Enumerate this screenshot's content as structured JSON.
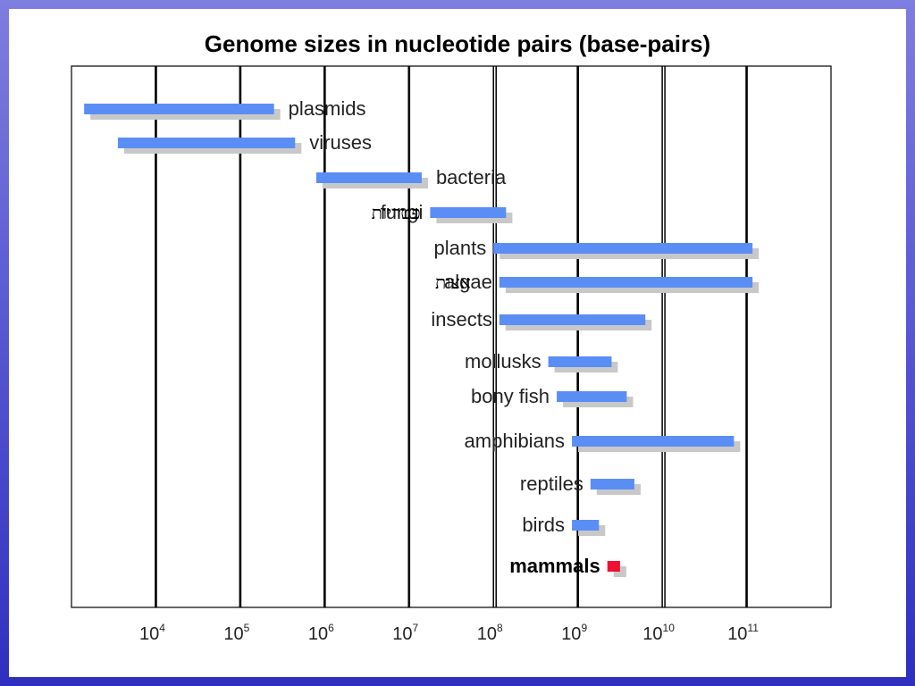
{
  "colors": {
    "bar": "#5b8ef5",
    "bar_highlight": "#ee1133",
    "shadow": "#c8c8c8",
    "gridline": "#000000",
    "frame_background": "#6a6ad8"
  },
  "annotations": [
    {
      "text": "פטריות",
      "row": "fungi"
    },
    {
      "text": "אצות",
      "row": "algae"
    }
  ],
  "chart_data": {
    "type": "bar",
    "orientation": "horizontal-range",
    "title": "Genome sizes in nucleotide pairs (base-pairs)",
    "xscale": "log",
    "xlim_log10": [
      3,
      12
    ],
    "grid": "vertical at powers of ten",
    "x_ticks": [
      {
        "base": "10",
        "exp": "4"
      },
      {
        "base": "10",
        "exp": "5"
      },
      {
        "base": "10",
        "exp": "6"
      },
      {
        "base": "10",
        "exp": "7"
      },
      {
        "base": "10",
        "exp": "8"
      },
      {
        "base": "10",
        "exp": "9"
      },
      {
        "base": "10",
        "exp": "10"
      },
      {
        "base": "10",
        "exp": "11"
      }
    ],
    "series": [
      {
        "categories": [
          "plasmids",
          "viruses",
          "bacteria",
          "fungi",
          "plants",
          "algae",
          "insects",
          "mollusks",
          "bony fish",
          "amphibians",
          "reptiles",
          "birds",
          "mammals"
        ],
        "ranges_log10": [
          [
            3.15,
            5.4
          ],
          [
            3.55,
            5.65
          ],
          [
            5.9,
            7.15
          ],
          [
            7.25,
            8.15
          ],
          [
            8.0,
            11.07
          ],
          [
            8.07,
            11.07
          ],
          [
            8.07,
            9.8
          ],
          [
            8.65,
            9.4
          ],
          [
            8.75,
            9.58
          ],
          [
            8.93,
            10.85
          ],
          [
            9.15,
            9.67
          ],
          [
            8.93,
            9.25
          ],
          [
            9.35,
            9.5
          ]
        ],
        "highlight": [
          false,
          false,
          false,
          false,
          false,
          false,
          false,
          false,
          false,
          false,
          false,
          false,
          true
        ],
        "label_side": [
          "right",
          "right",
          "right",
          "left",
          "left",
          "left",
          "left",
          "left",
          "left",
          "left",
          "left",
          "left",
          "left"
        ]
      }
    ]
  }
}
